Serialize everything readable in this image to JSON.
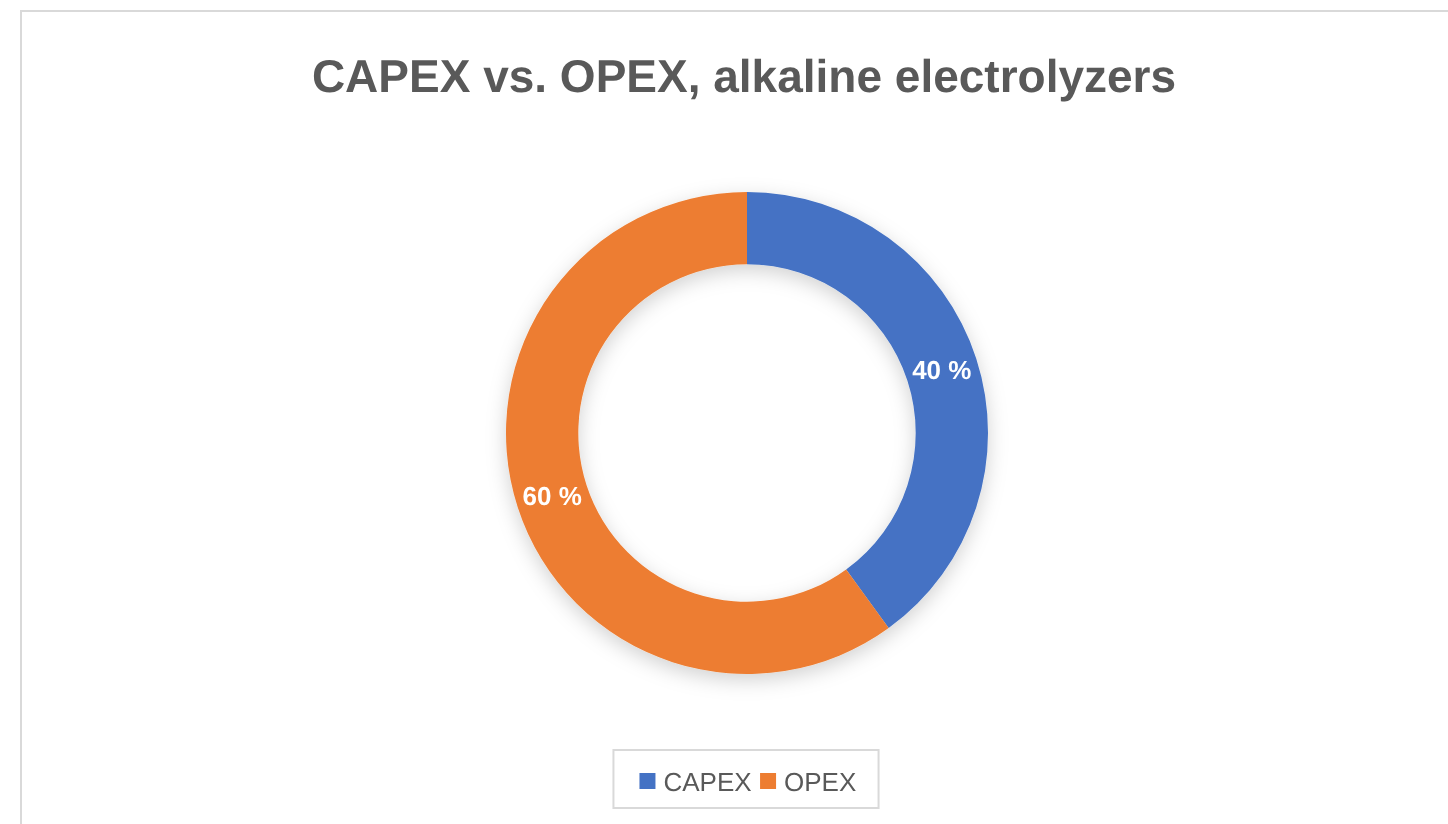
{
  "chart_data": {
    "type": "donut",
    "title": "CAPEX vs. OPEX, alkaline electrolyzers",
    "categories": [
      "CAPEX",
      "OPEX"
    ],
    "values": [
      40,
      60
    ],
    "colors": [
      "#4472c4",
      "#ed7d31"
    ],
    "value_labels": [
      "40 %",
      "60 %"
    ],
    "legend": "bottom"
  }
}
